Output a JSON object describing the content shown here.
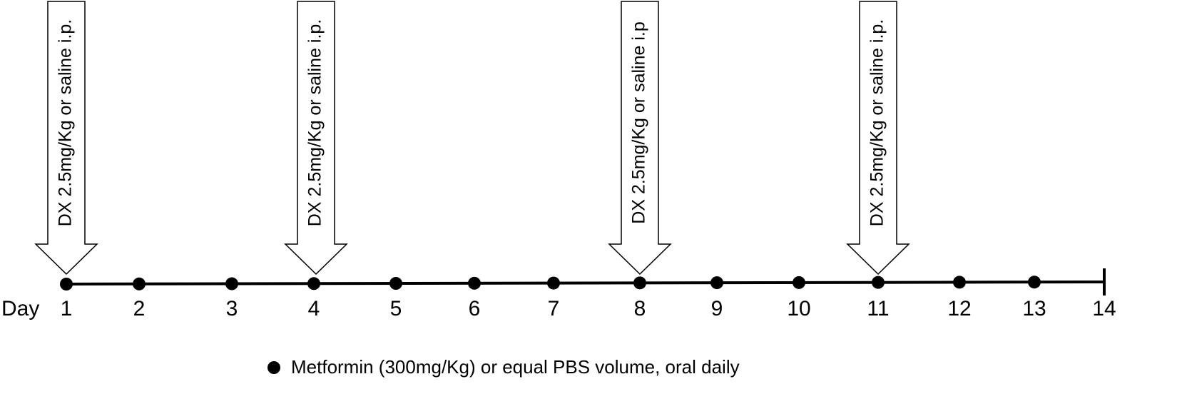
{
  "axis_label": "Day",
  "days": [
    "1",
    "2",
    "3",
    "4",
    "5",
    "6",
    "7",
    "8",
    "9",
    "10",
    "11",
    "12",
    "13",
    "14"
  ],
  "arrows": [
    {
      "label": "DX 2.5mg/Kg or saline i.p."
    },
    {
      "label": "DX 2.5mg/Kg or saline i.p."
    },
    {
      "label": "DX 2.5mg/Kg or saline i.p"
    },
    {
      "label": "DX 2.5mg/Kg or saline i.p."
    }
  ],
  "legend": {
    "label": "Metformin (300mg/Kg) or equal PBS volume, oral daily"
  }
}
